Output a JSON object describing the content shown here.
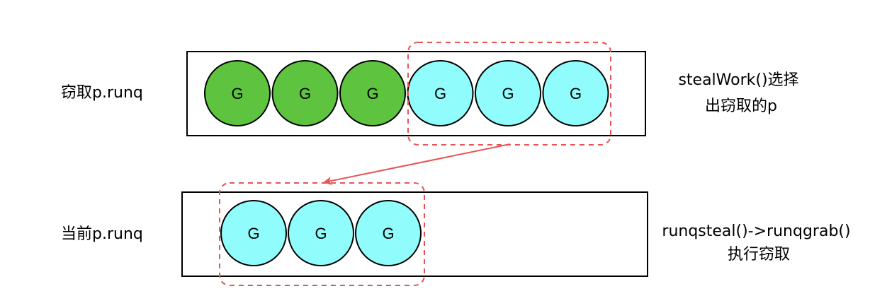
{
  "top_row": {
    "label": "窃取p.runq",
    "goroutines": [
      {
        "text": "G",
        "color": "#5ec43f"
      },
      {
        "text": "G",
        "color": "#5ec43f"
      },
      {
        "text": "G",
        "color": "#5ec43f"
      },
      {
        "text": "G",
        "color": "#90fcfc"
      },
      {
        "text": "G",
        "color": "#90fcfc"
      },
      {
        "text": "G",
        "color": "#90fcfc"
      }
    ],
    "note_lines": [
      "stealWork()选择",
      "出窃取的p"
    ]
  },
  "bottom_row": {
    "label": "当前p.runq",
    "goroutines": [
      {
        "text": "G",
        "color": "#90fcfc"
      },
      {
        "text": "G",
        "color": "#90fcfc"
      },
      {
        "text": "G",
        "color": "#90fcfc"
      }
    ],
    "note_lines": [
      "runqsteal()->runqgrab()",
      "执行窃取"
    ]
  },
  "colors": {
    "selection_dash": "#e85454",
    "arrow": "#e85454",
    "stroke": "#000000"
  }
}
